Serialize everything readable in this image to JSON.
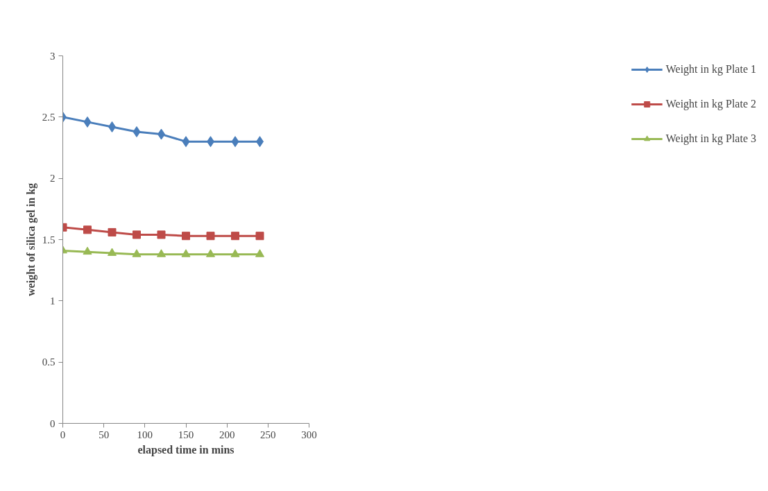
{
  "chart_data": {
    "type": "line",
    "xlabel": "elapsed time in mins",
    "ylabel": "weight of silica gel in kg",
    "x": [
      0,
      30,
      60,
      90,
      120,
      150,
      180,
      210,
      240
    ],
    "series": [
      {
        "name": "Weight in kg Plate 1",
        "color": "#4a7ebb",
        "marker": "diamond",
        "values": [
          2.5,
          2.46,
          2.42,
          2.38,
          2.36,
          2.3,
          2.3,
          2.3,
          2.3
        ]
      },
      {
        "name": "Weight in kg Plate 2",
        "color": "#be4b48",
        "marker": "square",
        "values": [
          1.6,
          1.58,
          1.56,
          1.54,
          1.54,
          1.53,
          1.53,
          1.53,
          1.53
        ]
      },
      {
        "name": "Weight in kg Plate 3",
        "color": "#98b954",
        "marker": "triangle",
        "values": [
          1.41,
          1.4,
          1.39,
          1.38,
          1.38,
          1.38,
          1.38,
          1.38,
          1.38
        ]
      }
    ],
    "xlim": [
      0,
      300
    ],
    "xticks": [
      0,
      50,
      100,
      150,
      200,
      250,
      300
    ],
    "ylim": [
      0,
      3
    ],
    "yticks": [
      0,
      0.5,
      1,
      1.5,
      2,
      2.5,
      3
    ],
    "grid": false,
    "legend": "right",
    "line_style": "solid"
  }
}
